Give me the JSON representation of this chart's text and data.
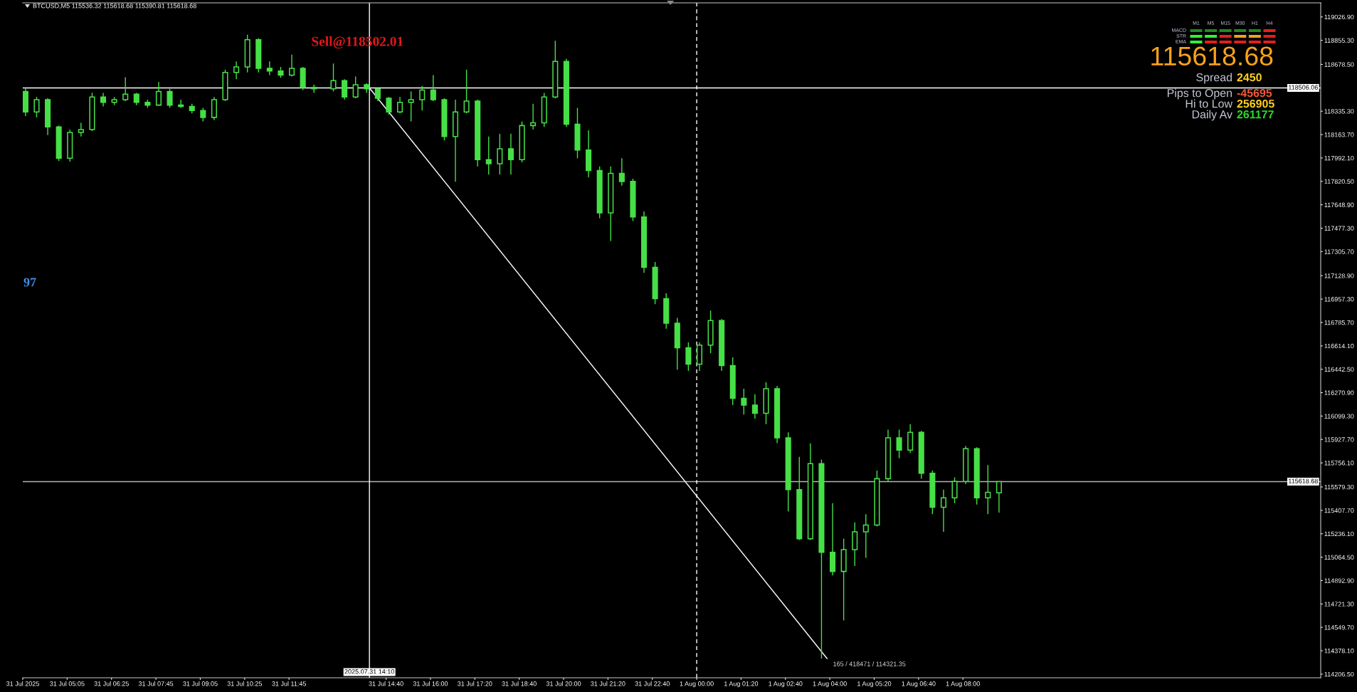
{
  "chart_data": {
    "type": "candlestick",
    "title": "BTCUSD,M5 115536.32 115618.68 115390.81 115618.68",
    "color": "#46e046",
    "x": [
      "2025-07-31T03:50",
      "2025-07-31T04:10",
      "2025-07-31T04:30",
      "2025-07-31T04:50",
      "2025-07-31T05:10",
      "2025-07-31T05:30",
      "2025-07-31T05:50",
      "2025-07-31T06:10",
      "2025-07-31T06:30",
      "2025-07-31T06:50",
      "2025-07-31T07:10",
      "2025-07-31T07:30",
      "2025-07-31T07:50",
      "2025-07-31T08:10",
      "2025-07-31T08:30",
      "2025-07-31T08:50",
      "2025-07-31T09:10",
      "2025-07-31T09:30",
      "2025-07-31T09:50",
      "2025-07-31T10:10",
      "2025-07-31T10:30",
      "2025-07-31T10:50",
      "2025-07-31T11:10",
      "2025-07-31T11:30",
      "2025-07-31T11:50",
      "2025-07-31T12:10",
      "2025-07-31T12:30",
      "2025-07-31T13:05",
      "2025-07-31T13:25",
      "2025-07-31T13:45",
      "2025-07-31T14:05",
      "2025-07-31T14:25",
      "2025-07-31T14:45",
      "2025-07-31T15:05",
      "2025-07-31T15:25",
      "2025-07-31T15:45",
      "2025-07-31T16:05",
      "2025-07-31T16:25",
      "2025-07-31T16:45",
      "2025-07-31T17:05",
      "2025-07-31T17:25",
      "2025-07-31T17:45",
      "2025-07-31T18:05",
      "2025-07-31T18:25",
      "2025-07-31T18:45",
      "2025-07-31T19:05",
      "2025-07-31T19:25",
      "2025-07-31T19:45",
      "2025-07-31T20:05",
      "2025-07-31T20:25",
      "2025-07-31T20:45",
      "2025-07-31T21:05",
      "2025-07-31T21:25",
      "2025-07-31T21:45",
      "2025-07-31T22:05",
      "2025-07-31T22:25",
      "2025-07-31T22:45",
      "2025-07-31T23:05",
      "2025-07-31T23:25",
      "2025-07-31T23:45",
      "2025-08-01T00:05",
      "2025-08-01T00:25",
      "2025-08-01T00:45",
      "2025-08-01T01:05",
      "2025-08-01T01:25",
      "2025-08-01T01:45",
      "2025-08-01T02:05",
      "2025-08-01T02:25",
      "2025-08-01T02:45",
      "2025-08-01T03:05",
      "2025-08-01T03:25",
      "2025-08-01T03:45",
      "2025-08-01T04:05",
      "2025-08-01T04:25",
      "2025-08-01T04:45",
      "2025-08-01T05:05",
      "2025-08-01T05:25",
      "2025-08-01T05:45",
      "2025-08-01T06:05",
      "2025-08-01T06:25",
      "2025-08-01T06:45",
      "2025-08-01T07:05",
      "2025-08-01T07:25",
      "2025-08-01T07:45",
      "2025-08-01T08:05",
      "2025-08-01T08:25",
      "2025-08-01T08:45",
      "2025-08-01T09:05"
    ],
    "ohlc": [
      [
        118480,
        118510,
        118300,
        118330
      ],
      [
        118330,
        118440,
        118290,
        118420
      ],
      [
        118420,
        118430,
        118160,
        118220
      ],
      [
        118220,
        118230,
        117970,
        117990
      ],
      [
        117990,
        118200,
        117965,
        118180
      ],
      [
        118180,
        118250,
        118150,
        118200
      ],
      [
        118200,
        118470,
        118190,
        118440
      ],
      [
        118440,
        118470,
        118370,
        118400
      ],
      [
        118400,
        118440,
        118380,
        118420
      ],
      [
        118420,
        118585,
        118410,
        118460
      ],
      [
        118460,
        118470,
        118380,
        118400
      ],
      [
        118400,
        118420,
        118360,
        118380
      ],
      [
        118380,
        118550,
        118375,
        118480
      ],
      [
        118480,
        118500,
        118360,
        118380
      ],
      [
        118380,
        118420,
        118360,
        118370
      ],
      [
        118370,
        118390,
        118320,
        118340
      ],
      [
        118340,
        118360,
        118260,
        118290
      ],
      [
        118290,
        118440,
        118270,
        118420
      ],
      [
        118420,
        118640,
        118410,
        118620
      ],
      [
        118620,
        118700,
        118570,
        118660
      ],
      [
        118660,
        118896,
        118620,
        118860
      ],
      [
        118860,
        118870,
        118620,
        118650
      ],
      [
        118650,
        118700,
        118600,
        118630
      ],
      [
        118630,
        118660,
        118580,
        118600
      ],
      [
        118600,
        118750,
        118590,
        118650
      ],
      [
        118650,
        118660,
        118490,
        118510
      ],
      [
        118510,
        118530,
        118470,
        118500
      ],
      [
        118500,
        118685,
        118480,
        118560
      ],
      [
        118560,
        118570,
        118420,
        118440
      ],
      [
        118440,
        118590,
        118430,
        118530
      ],
      [
        118530,
        118540,
        118470,
        118500
      ],
      [
        118500,
        118510,
        118410,
        118430
      ],
      [
        118430,
        118440,
        118310,
        118330
      ],
      [
        118330,
        118440,
        118320,
        118400
      ],
      [
        118400,
        118480,
        118260,
        118420
      ],
      [
        118420,
        118520,
        118340,
        118490
      ],
      [
        118490,
        118600,
        118410,
        118420
      ],
      [
        118420,
        118430,
        118120,
        118150
      ],
      [
        118150,
        118420,
        117818,
        118330
      ],
      [
        118330,
        118640,
        118320,
        118410
      ],
      [
        118410,
        118420,
        117930,
        117980
      ],
      [
        117980,
        118150,
        117870,
        117950
      ],
      [
        117950,
        118170,
        117870,
        118060
      ],
      [
        118060,
        118170,
        117870,
        117980
      ],
      [
        117980,
        118260,
        117960,
        118230
      ],
      [
        118230,
        118390,
        118200,
        118250
      ],
      [
        118250,
        118470,
        118220,
        118440
      ],
      [
        118440,
        118852,
        118430,
        118700
      ],
      [
        118700,
        118720,
        118220,
        118240
      ],
      [
        118240,
        118360,
        117990,
        118050
      ],
      [
        118050,
        118195,
        117850,
        117900
      ],
      [
        117900,
        117930,
        117550,
        117590
      ],
      [
        117590,
        117930,
        117384,
        117880
      ],
      [
        117880,
        117990,
        117790,
        117820
      ],
      [
        117820,
        117840,
        117530,
        117560
      ],
      [
        117560,
        117600,
        117150,
        117190
      ],
      [
        117190,
        117230,
        116920,
        116960
      ],
      [
        116960,
        117000,
        116740,
        116780
      ],
      [
        116780,
        116820,
        116440,
        116600
      ],
      [
        116600,
        116640,
        116430,
        116480
      ],
      [
        116480,
        116640,
        116430,
        116620
      ],
      [
        116620,
        116873,
        116560,
        116800
      ],
      [
        116800,
        116810,
        116430,
        116470
      ],
      [
        116470,
        116530,
        116180,
        116230
      ],
      [
        116230,
        116300,
        116110,
        116180
      ],
      [
        116180,
        116260,
        116080,
        116120
      ],
      [
        116120,
        116348,
        116040,
        116300
      ],
      [
        116300,
        116320,
        115900,
        115940
      ],
      [
        115940,
        115980,
        115400,
        115560
      ],
      [
        115560,
        115800,
        115190,
        115200
      ],
      [
        115200,
        115899,
        115190,
        115750
      ],
      [
        115750,
        115780,
        114321.35,
        115100
      ],
      [
        115100,
        115460,
        114930,
        114960
      ],
      [
        114960,
        115200,
        114600,
        115120
      ],
      [
        115120,
        115320,
        115000,
        115250
      ],
      [
        115250,
        115380,
        115060,
        115300
      ],
      [
        115300,
        115700,
        115290,
        115640
      ],
      [
        115640,
        116000,
        115620,
        115940
      ],
      [
        115940,
        116000,
        115790,
        115850
      ],
      [
        115850,
        116040,
        115830,
        115980
      ],
      [
        115980,
        115990,
        115640,
        115680
      ],
      [
        115680,
        115700,
        115380,
        115430
      ],
      [
        115430,
        115560,
        115250,
        115500
      ],
      [
        115500,
        115650,
        115460,
        115620
      ],
      [
        115620,
        115880,
        115600,
        115860
      ],
      [
        115860,
        115870,
        115450,
        115500
      ],
      [
        115500,
        115740,
        115380,
        115540
      ],
      [
        115536.32,
        115618.68,
        115390.81,
        115618.68
      ]
    ],
    "series": [
      {
        "type": "line",
        "x": [
          "2025-07-31T14:10",
          "2025-08-01T03:55"
        ],
        "values": [
          118506.06,
          114321.35
        ],
        "color": "#ffffff"
      }
    ],
    "xlim": [
      "2025-07-31T03:45",
      "2025-08-01T18:45"
    ],
    "ylim": [
      114180,
      119130
    ],
    "xticks": [
      {
        "value": "2025-07-31T03:45",
        "label": "31 Jul 2025"
      },
      {
        "value": "2025-07-31T05:05",
        "label": "31 Jul 05:05"
      },
      {
        "value": "2025-07-31T06:25",
        "label": "31 Jul 06:25"
      },
      {
        "value": "2025-07-31T07:45",
        "label": "31 Jul 07:45"
      },
      {
        "value": "2025-07-31T09:05",
        "label": "31 Jul 09:05"
      },
      {
        "value": "2025-07-31T10:25",
        "label": "31 Jul 10:25"
      },
      {
        "value": "2025-07-31T11:45",
        "label": "31 Jul 11:45"
      },
      {
        "value": "2025-07-31T14:40",
        "label": "31 Jul 14:40"
      },
      {
        "value": "2025-07-31T16:00",
        "label": "31 Jul 16:00"
      },
      {
        "value": "2025-07-31T17:20",
        "label": "31 Jul 17:20"
      },
      {
        "value": "2025-07-31T18:40",
        "label": "31 Jul 18:40"
      },
      {
        "value": "2025-07-31T20:00",
        "label": "31 Jul 20:00"
      },
      {
        "value": "2025-07-31T21:20",
        "label": "31 Jul 21:20"
      },
      {
        "value": "2025-07-31T22:40",
        "label": "31 Jul 22:40"
      },
      {
        "value": "2025-08-01T00:00",
        "label": "1 Aug 00:00"
      },
      {
        "value": "2025-08-01T01:20",
        "label": "1 Aug 01:20"
      },
      {
        "value": "2025-08-01T02:40",
        "label": "1 Aug 02:40"
      },
      {
        "value": "2025-08-01T04:00",
        "label": "1 Aug 04:00"
      },
      {
        "value": "2025-08-01T05:20",
        "label": "1 Aug 05:20"
      },
      {
        "value": "2025-08-01T06:40",
        "label": "1 Aug 06:40"
      },
      {
        "value": "2025-08-01T08:00",
        "label": "1 Aug 08:00"
      }
    ],
    "yticks": [
      {
        "value": 119026.9,
        "label": "119026.90"
      },
      {
        "value": 118855.3,
        "label": "118855.30"
      },
      {
        "value": 118678.5,
        "label": "118678.50"
      },
      {
        "value": 118335.3,
        "label": "118335.30"
      },
      {
        "value": 118163.7,
        "label": "118163.70"
      },
      {
        "value": 117992.1,
        "label": "117992.10"
      },
      {
        "value": 117820.5,
        "label": "117820.50"
      },
      {
        "value": 117648.9,
        "label": "117648.90"
      },
      {
        "value": 117477.3,
        "label": "117477.30"
      },
      {
        "value": 117305.7,
        "label": "117305.70"
      },
      {
        "value": 117128.9,
        "label": "117128.90"
      },
      {
        "value": 116957.3,
        "label": "116957.30"
      },
      {
        "value": 116785.7,
        "label": "116785.70"
      },
      {
        "value": 116614.1,
        "label": "116614.10"
      },
      {
        "value": 116442.5,
        "label": "116442.50"
      },
      {
        "value": 116270.9,
        "label": "116270.90"
      },
      {
        "value": 116099.3,
        "label": "116099.30"
      },
      {
        "value": 115927.7,
        "label": "115927.70"
      },
      {
        "value": 115756.1,
        "label": "115756.10"
      },
      {
        "value": 115579.3,
        "label": "115579.30"
      },
      {
        "value": 115407.7,
        "label": "115407.70"
      },
      {
        "value": 115236.1,
        "label": "115236.10"
      },
      {
        "value": 115064.5,
        "label": "115064.50"
      },
      {
        "value": 114892.9,
        "label": "114892.90"
      },
      {
        "value": 114721.3,
        "label": "114721.30"
      },
      {
        "value": 114549.7,
        "label": "114549.70"
      },
      {
        "value": 114378.1,
        "label": "114378.10"
      },
      {
        "value": 114206.5,
        "label": "114206.50"
      }
    ],
    "ref_lines": [
      {
        "axis": "y",
        "value": 118506.06,
        "label": "118506.06",
        "color": "#ffffff"
      },
      {
        "axis": "y",
        "value": 115618.68,
        "label": "115618.68",
        "color": "#b4b4b4"
      },
      {
        "axis": "x",
        "value": "2025-07-31T14:10",
        "label": "2025.07.31 14:10",
        "color": "#ffffff"
      },
      {
        "axis": "x",
        "value": "2025-08-01T00:00",
        "color": "#ffffff",
        "line_style": "dashed"
      }
    ],
    "annotations": [
      {
        "text": "Sell@118502.01",
        "x": "2025-07-31T12:25",
        "y": 118502.01
      },
      {
        "text": "165 / 418471 / 114321.35",
        "x": "2025-08-01T03:55",
        "y": 114321.35
      },
      "97",
      "115618.68",
      "Spread",
      "2450",
      "Pips to Open",
      "-45695",
      "Hi to Low",
      "256905",
      "Daily Av",
      "261177",
      "M1",
      "M5",
      "M15",
      "M30",
      "H1",
      "H4",
      "MACD",
      "STR",
      "EMA"
    ]
  }
}
